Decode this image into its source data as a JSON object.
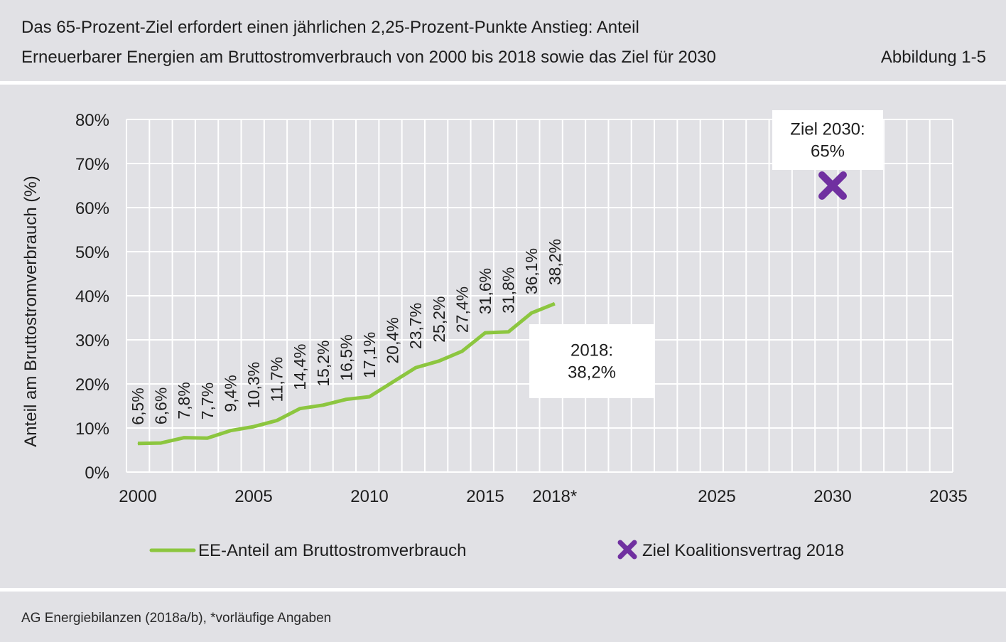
{
  "header": {
    "title_line1": "Das 65-Prozent-Ziel erfordert einen jährlichen 2,25-Prozent-Punkte Anstieg: Anteil",
    "title_line2": "Erneuerbarer Energien am Bruttostromverbrauch von 2000 bis 2018 sowie das Ziel für 2030",
    "figure_label": "Abbildung 1-5"
  },
  "footer": {
    "source": "AG Energiebilanzen (2018a/b), *vorläufige Angaben"
  },
  "colors": {
    "line": "#8cc63f",
    "target": "#7030a0",
    "background": "#e1e1e5",
    "grid": "#ffffff"
  },
  "chart_data": {
    "type": "line",
    "ylabel": "Anteil am Bruttostromverbrauch (%)",
    "xlim": [
      2000,
      2036
    ],
    "ylim": [
      0,
      80
    ],
    "yticks": [
      0,
      10,
      20,
      30,
      40,
      50,
      60,
      70,
      80
    ],
    "ytick_labels": [
      "0%",
      "10%",
      "20%",
      "30%",
      "40%",
      "50%",
      "60%",
      "70%",
      "80%"
    ],
    "xticks": [
      2000,
      2005,
      2010,
      2015,
      2018,
      2025,
      2030,
      2035
    ],
    "xtick_labels": [
      "2000",
      "2005",
      "2010",
      "2015",
      "2018*",
      "2025",
      "2030",
      "2035"
    ],
    "grid": true,
    "legend_position": "bottom",
    "series": [
      {
        "name": "EE-Anteil am Bruttostromverbrauch",
        "x": [
          2000,
          2001,
          2002,
          2003,
          2004,
          2005,
          2006,
          2007,
          2008,
          2009,
          2010,
          2011,
          2012,
          2013,
          2014,
          2015,
          2016,
          2017,
          2018
        ],
        "y": [
          6.5,
          6.6,
          7.8,
          7.7,
          9.4,
          10.3,
          11.7,
          14.4,
          15.2,
          16.5,
          17.1,
          20.4,
          23.7,
          25.2,
          27.4,
          31.6,
          31.8,
          36.1,
          38.2
        ],
        "labels": [
          "6,5%",
          "6,6%",
          "7,8%",
          "7,7%",
          "9,4%",
          "10,3%",
          "11,7%",
          "14,4%",
          "15,2%",
          "16,5%",
          "17,1%",
          "20,4%",
          "23,7%",
          "25,2%",
          "27,4%",
          "31,6%",
          "31,8%",
          "36,1%",
          "38,2%"
        ]
      },
      {
        "name": "Ziel Koalitionsvertrag 2018",
        "x": [
          2030
        ],
        "y": [
          65
        ]
      }
    ],
    "annotations": [
      {
        "x": 2018,
        "y": 38.2,
        "lines": [
          "2018:",
          "38,2%"
        ]
      },
      {
        "x": 2030,
        "y": 65,
        "lines": [
          "Ziel 2030:",
          "65%"
        ]
      }
    ]
  }
}
